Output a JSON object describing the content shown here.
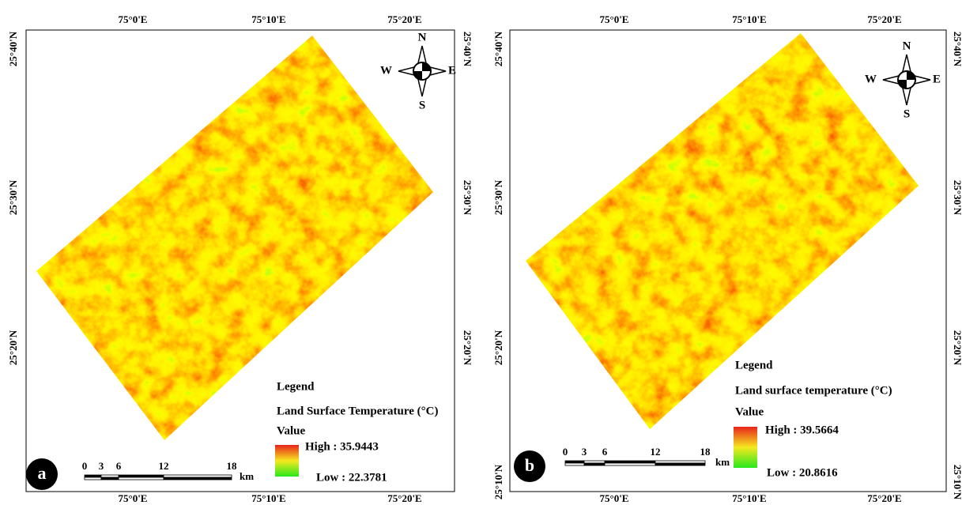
{
  "panels": [
    {
      "label": "a",
      "lon_top": [
        "75°0'E",
        "75°10'E",
        "75°20'E"
      ],
      "lon_bottom": [
        "75°0'E",
        "75°10'E",
        "75°20'E"
      ],
      "lat_left": [
        "25°40'N",
        "25°30'N",
        "25°20'N"
      ],
      "lat_right": [
        "25°40'N",
        "25°30'N",
        "25°20'N"
      ],
      "compass": {
        "n": "N",
        "s": "S",
        "w": "W",
        "e": "E"
      },
      "legend": {
        "title": "Legend",
        "field": "Land Surface Temperature (°C)",
        "value": "Value",
        "high": "High : 35.9443",
        "low": "Low : 22.3781"
      },
      "scale": {
        "ticks": [
          "0",
          "3",
          "6",
          "12",
          "18"
        ],
        "unit": "km"
      }
    },
    {
      "label": "b",
      "lon_top": [
        "75°0'E",
        "75°10'E",
        "75°20'E"
      ],
      "lon_bottom": [
        "75°0'E",
        "75°10'E",
        "75°20'E"
      ],
      "lat_left": [
        "25°40'N",
        "25°30'N",
        "25°20'N",
        "25°10'N"
      ],
      "lat_right": [
        "25°40'N",
        "25°30'N",
        "25°20'N",
        "25°10'N"
      ],
      "compass": {
        "n": "N",
        "s": "S",
        "w": "W",
        "e": "E"
      },
      "legend": {
        "title": "Legend",
        "field": "Land surface temperature (°C)",
        "value": "Value",
        "high": "High : 39.5664",
        "low": "Low : 20.8616"
      },
      "scale": {
        "ticks": [
          "0",
          "3",
          "6",
          "12",
          "18"
        ],
        "unit": "km"
      }
    }
  ]
}
